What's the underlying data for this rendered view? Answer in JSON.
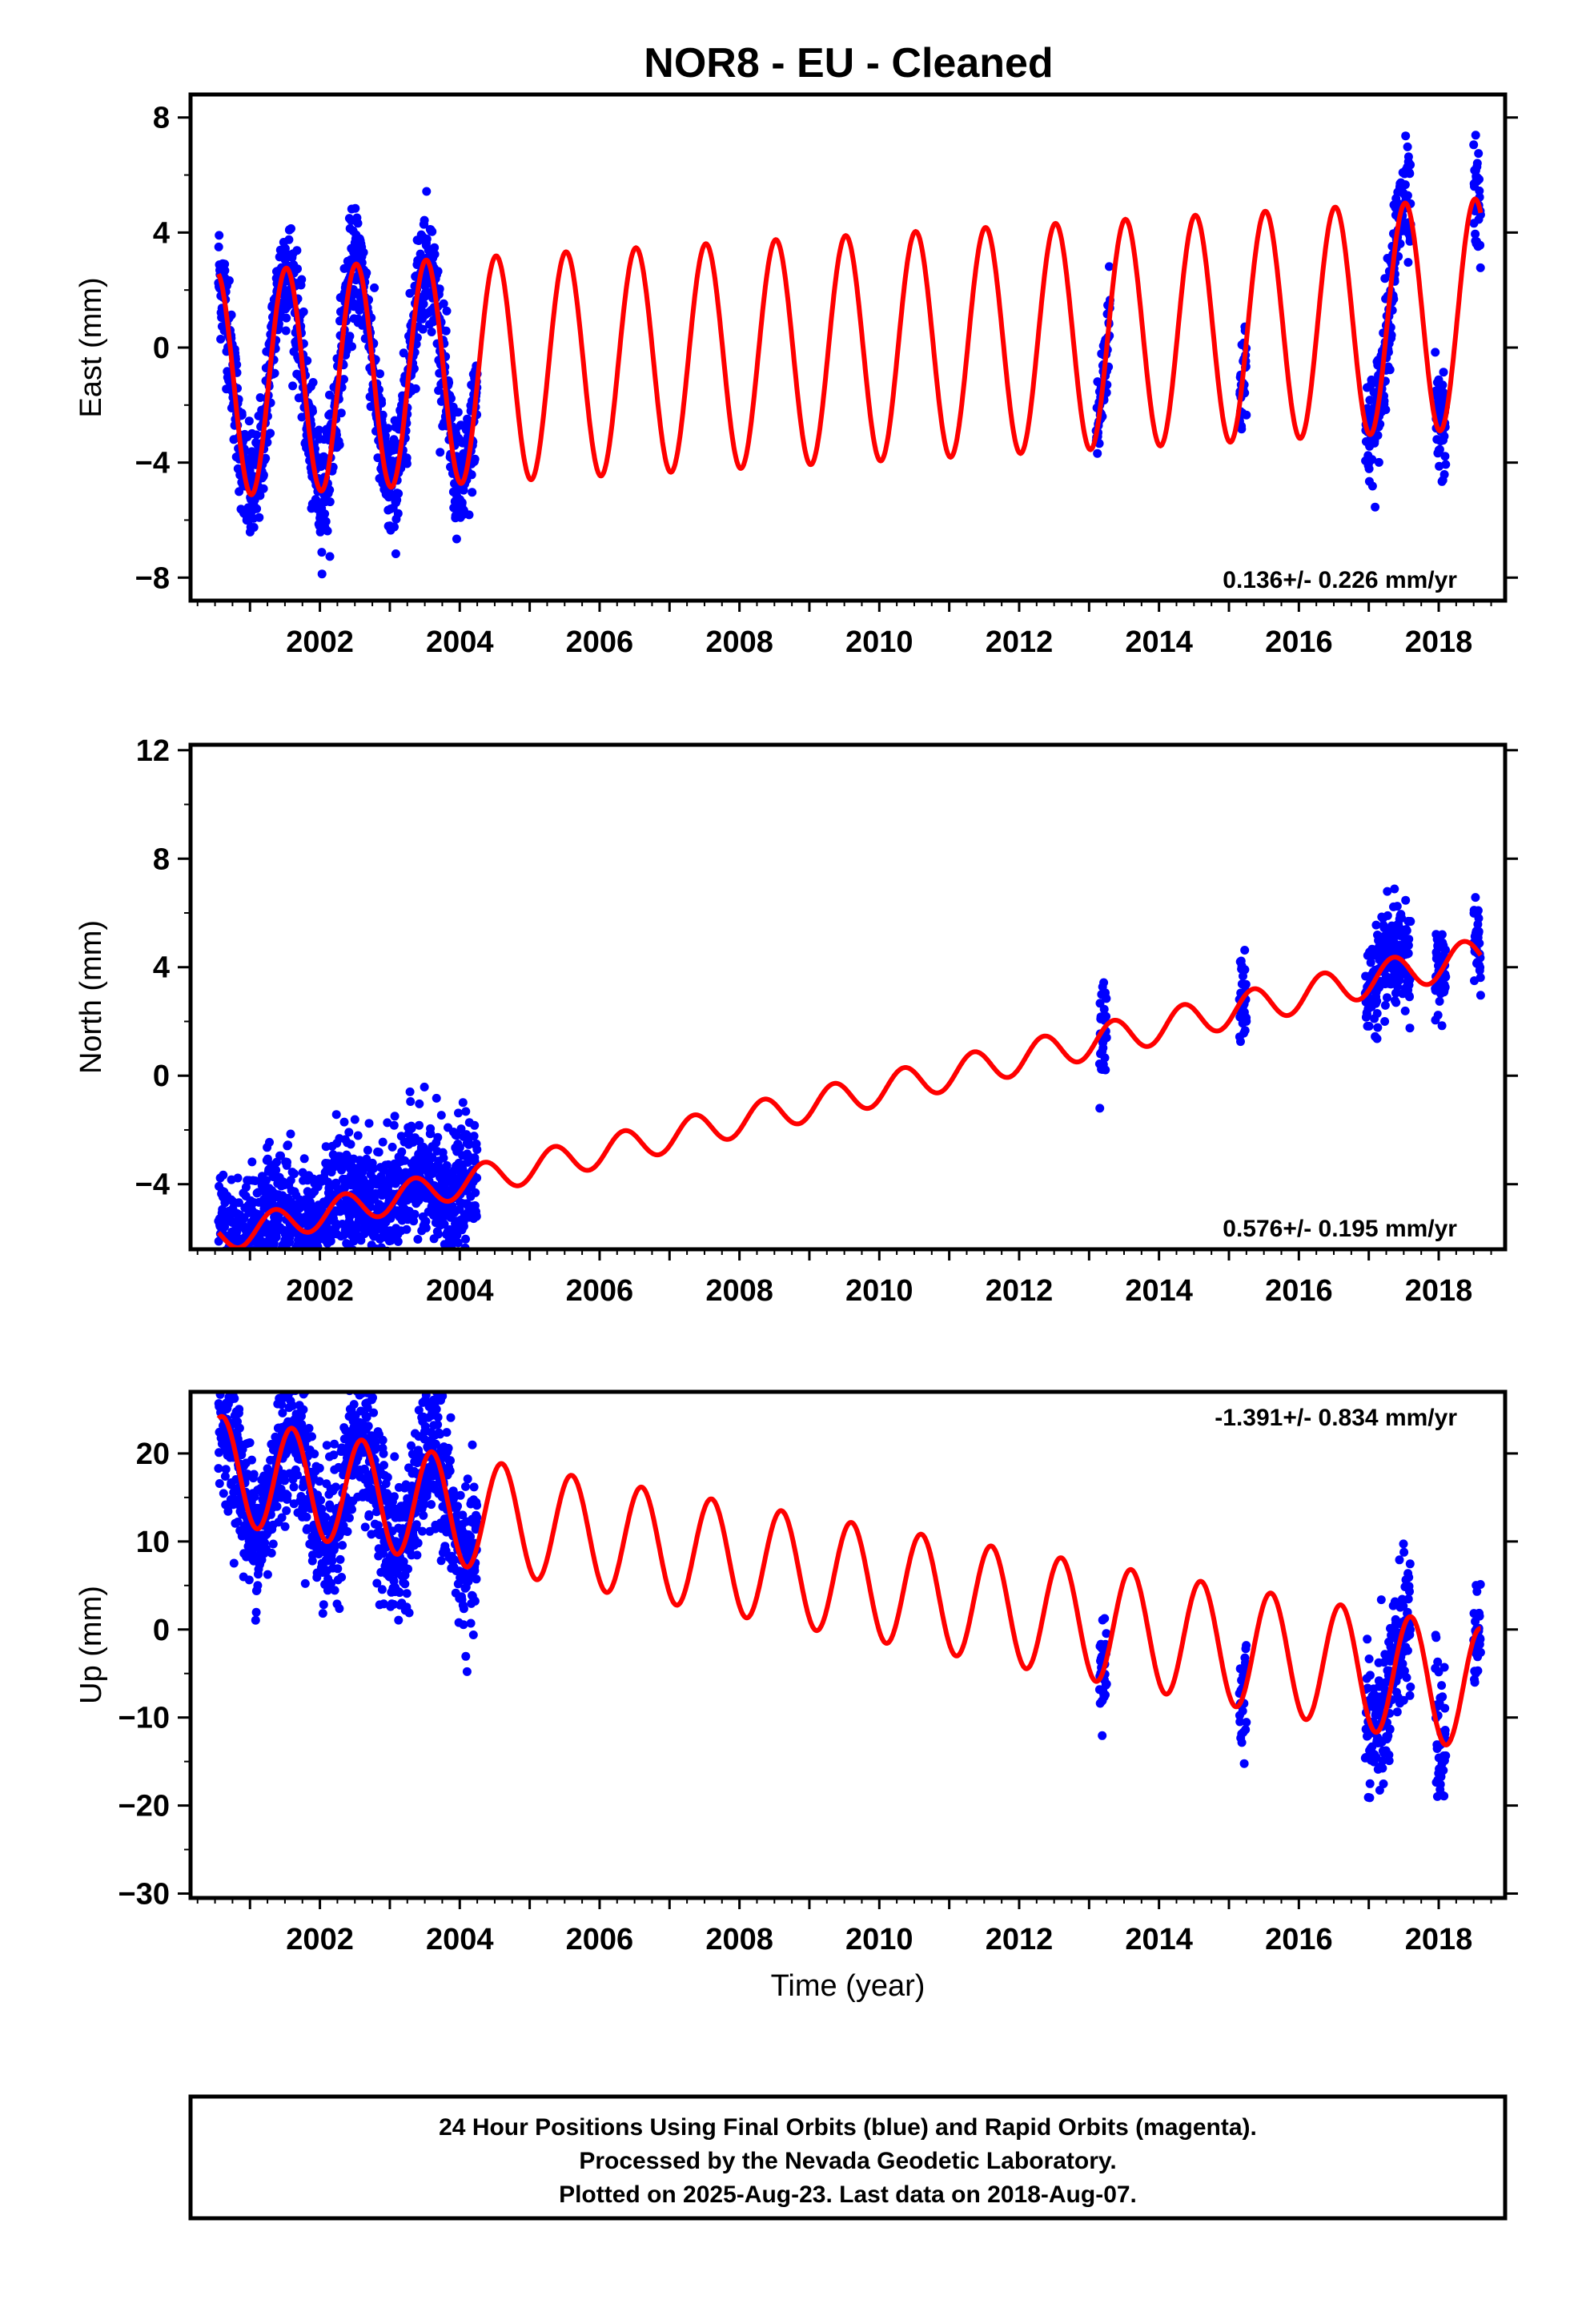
{
  "title": "NOR8  - EU - Cleaned",
  "colors": {
    "final_orbits": "#0000ff",
    "model": "#ff0000",
    "frame": "#000000"
  },
  "chart_data": [
    {
      "type": "scatter",
      "panel": "east",
      "ylabel": "East (mm)",
      "xlim": [
        2000.15,
        2018.95
      ],
      "ylim": [
        -8.8,
        8.8
      ],
      "yticks": [
        "8",
        "4",
        "0",
        "−4",
        "−8"
      ],
      "ytick_values": [
        8,
        4,
        0,
        -4,
        -8
      ],
      "xticks": [
        "2002",
        "2004",
        "2006",
        "2008",
        "2010",
        "2012",
        "2014",
        "2016",
        "2018"
      ],
      "xtick_values": [
        2002,
        2004,
        2006,
        2008,
        2010,
        2012,
        2014,
        2016,
        2018
      ],
      "rate_text": "0.136+/- 0.226 mm/yr",
      "rate_position": "bottom-right",
      "model": {
        "name": "fit",
        "offset": -0.06,
        "slope": 0.136,
        "amplitude_start": 3.9,
        "amplitude_end": 4.0,
        "phase_year": 2000.27
      },
      "data_segments": [
        {
          "start": 2000.55,
          "end": 2004.25,
          "spread": 1.0
        },
        {
          "start": 2013.1,
          "end": 2013.3,
          "spread": 0.9
        },
        {
          "start": 2015.15,
          "end": 2015.25,
          "spread": 0.9
        },
        {
          "start": 2016.95,
          "end": 2017.6,
          "spread": 1.0
        },
        {
          "start": 2017.95,
          "end": 2018.1,
          "spread": 1.0
        },
        {
          "start": 2018.5,
          "end": 2018.6,
          "spread": 1.0
        }
      ]
    },
    {
      "type": "scatter",
      "panel": "north",
      "ylabel": "North (mm)",
      "xlim": [
        2000.15,
        2018.95
      ],
      "ylim": [
        -6.4,
        12.2
      ],
      "yticks": [
        "12",
        "8",
        "4",
        "0",
        "−4"
      ],
      "ytick_values": [
        12,
        8,
        4,
        0,
        -4
      ],
      "xticks": [
        "2002",
        "2004",
        "2006",
        "2008",
        "2010",
        "2012",
        "2014",
        "2016",
        "2018"
      ],
      "xtick_values": [
        2002,
        2004,
        2006,
        2008,
        2010,
        2012,
        2014,
        2016,
        2018
      ],
      "rate_text": "0.576+/- 0.195 mm/yr",
      "rate_position": "bottom-right",
      "model": {
        "name": "fit",
        "offset": -0.8,
        "slope": 0.576,
        "amplitude_start": 0.55,
        "amplitude_end": 0.65,
        "phase_year": 2000.1
      },
      "data_segments": [
        {
          "start": 2000.55,
          "end": 2004.25,
          "spread": 1.2
        },
        {
          "start": 2013.15,
          "end": 2013.25,
          "spread": 0.9
        },
        {
          "start": 2015.15,
          "end": 2015.25,
          "spread": 0.8
        },
        {
          "start": 2016.95,
          "end": 2017.6,
          "spread": 0.9
        },
        {
          "start": 2017.95,
          "end": 2018.1,
          "spread": 0.8
        },
        {
          "start": 2018.5,
          "end": 2018.6,
          "spread": 0.9
        }
      ]
    },
    {
      "type": "scatter",
      "panel": "up",
      "ylabel": "Up (mm)",
      "xlim": [
        2000.15,
        2018.95
      ],
      "ylim": [
        -30.5,
        27
      ],
      "yticks": [
        "20",
        "10",
        "0",
        "−10",
        "−20",
        "−30"
      ],
      "ytick_values": [
        20,
        10,
        0,
        -10,
        -20,
        -30
      ],
      "xticks": [
        "2002",
        "2004",
        "2006",
        "2008",
        "2010",
        "2012",
        "2014",
        "2016",
        "2018"
      ],
      "xtick_values": [
        2002,
        2004,
        2006,
        2008,
        2010,
        2012,
        2014,
        2016,
        2018
      ],
      "xlabel": "Time (year)",
      "rate_text": "-1.391+/- 0.834 mm/yr",
      "rate_position": "top-right",
      "model": {
        "name": "fit",
        "offset": 5.8,
        "slope": -1.391,
        "amplitude_start": 6.0,
        "amplitude_end": 7.0,
        "phase_year": 2000.35
      },
      "data_segments": [
        {
          "start": 2000.55,
          "end": 2004.25,
          "spread": 4.0
        },
        {
          "start": 2013.15,
          "end": 2013.25,
          "spread": 3.5
        },
        {
          "start": 2015.15,
          "end": 2015.25,
          "spread": 3.5
        },
        {
          "start": 2016.95,
          "end": 2017.6,
          "spread": 4.0
        },
        {
          "start": 2017.95,
          "end": 2018.1,
          "spread": 4.0
        },
        {
          "start": 2018.5,
          "end": 2018.6,
          "spread": 3.5
        }
      ]
    }
  ],
  "footer": {
    "line1": "24 Hour Positions Using Final Orbits (blue) and Rapid Orbits (magenta).",
    "line2": "Processed by the Nevada Geodetic Laboratory.",
    "line3": "Plotted on 2025-Aug-23. Last data on 2018-Aug-07."
  }
}
